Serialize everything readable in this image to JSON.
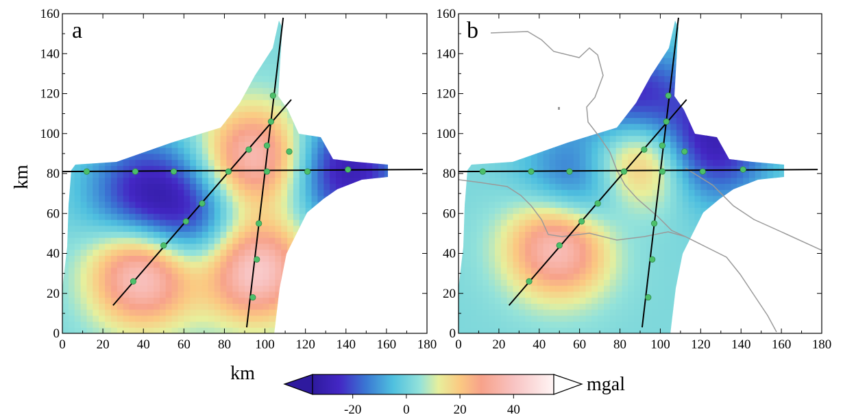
{
  "figure": {
    "y_axis_title": "km",
    "x_axis_title": "km",
    "x_ticks": [
      0,
      20,
      40,
      60,
      80,
      100,
      120,
      140,
      160,
      180
    ],
    "y_ticks": [
      0,
      20,
      40,
      60,
      80,
      100,
      120,
      140,
      160
    ],
    "x_range": [
      0,
      180
    ],
    "y_range": [
      0,
      160
    ]
  },
  "panels": [
    {
      "label": "a",
      "map_type": "gravity anomaly (color fill), survey lines with stations",
      "anomaly_highs": [
        {
          "x": 95,
          "y": 88,
          "value_mgal": 40
        },
        {
          "x": 95,
          "y": 32,
          "value_mgal": 45
        },
        {
          "x": 40,
          "y": 30,
          "value_mgal": 45
        }
      ],
      "anomaly_lows": [
        {
          "x": 40,
          "y": 70,
          "value_mgal": -25
        },
        {
          "x": 140,
          "y": 82,
          "value_mgal": -30
        },
        {
          "x": 65,
          "y": 55,
          "value_mgal": -20
        }
      ]
    },
    {
      "label": "b",
      "map_type": "gravity anomaly (color fill), survey lines with stations, coastline",
      "anomaly_highs": [
        {
          "x": 88,
          "y": 88,
          "value_mgal": 40
        },
        {
          "x": 50,
          "y": 45,
          "value_mgal": 45
        }
      ],
      "anomaly_lows": [
        {
          "x": 85,
          "y": 115,
          "value_mgal": -30
        },
        {
          "x": 125,
          "y": 95,
          "value_mgal": -30
        },
        {
          "x": 60,
          "y": 72,
          "value_mgal": -25
        }
      ]
    }
  ],
  "survey_lines": [
    {
      "name": "E-W line",
      "from": [
        0,
        81
      ],
      "to": [
        178,
        82
      ]
    },
    {
      "name": "SW-NE line",
      "from": [
        25,
        14
      ],
      "to": [
        113,
        117
      ]
    },
    {
      "name": "S-N line",
      "from": [
        91,
        3
      ],
      "to": [
        109,
        158
      ]
    }
  ],
  "stations": [
    [
      12,
      81
    ],
    [
      36,
      81
    ],
    [
      55,
      81
    ],
    [
      82,
      81
    ],
    [
      101,
      81
    ],
    [
      121,
      81
    ],
    [
      141,
      82
    ],
    [
      35,
      26
    ],
    [
      50,
      44
    ],
    [
      61,
      56
    ],
    [
      69,
      65
    ],
    [
      92,
      92
    ],
    [
      103,
      106
    ],
    [
      104,
      119
    ],
    [
      94,
      18
    ],
    [
      96,
      37
    ],
    [
      97,
      55
    ],
    [
      101,
      94
    ],
    [
      112,
      91
    ]
  ],
  "colorbar": {
    "unit": "mgal",
    "tick_labels": [
      "-20",
      "0",
      "20",
      "40"
    ],
    "ticks": [
      -20,
      0,
      20,
      40
    ],
    "range": [
      -35,
      55
    ],
    "stops": [
      {
        "v": -35,
        "c": "#2e1a9e"
      },
      {
        "v": -25,
        "c": "#4327c4"
      },
      {
        "v": -15,
        "c": "#3a78d3"
      },
      {
        "v": -5,
        "c": "#4fc0df"
      },
      {
        "v": 5,
        "c": "#93e2da"
      },
      {
        "v": 12,
        "c": "#e7ef9c"
      },
      {
        "v": 20,
        "c": "#fbc982"
      },
      {
        "v": 28,
        "c": "#f7a28a"
      },
      {
        "v": 40,
        "c": "#f8c3c2"
      },
      {
        "v": 55,
        "c": "#fff5f5"
      }
    ]
  }
}
